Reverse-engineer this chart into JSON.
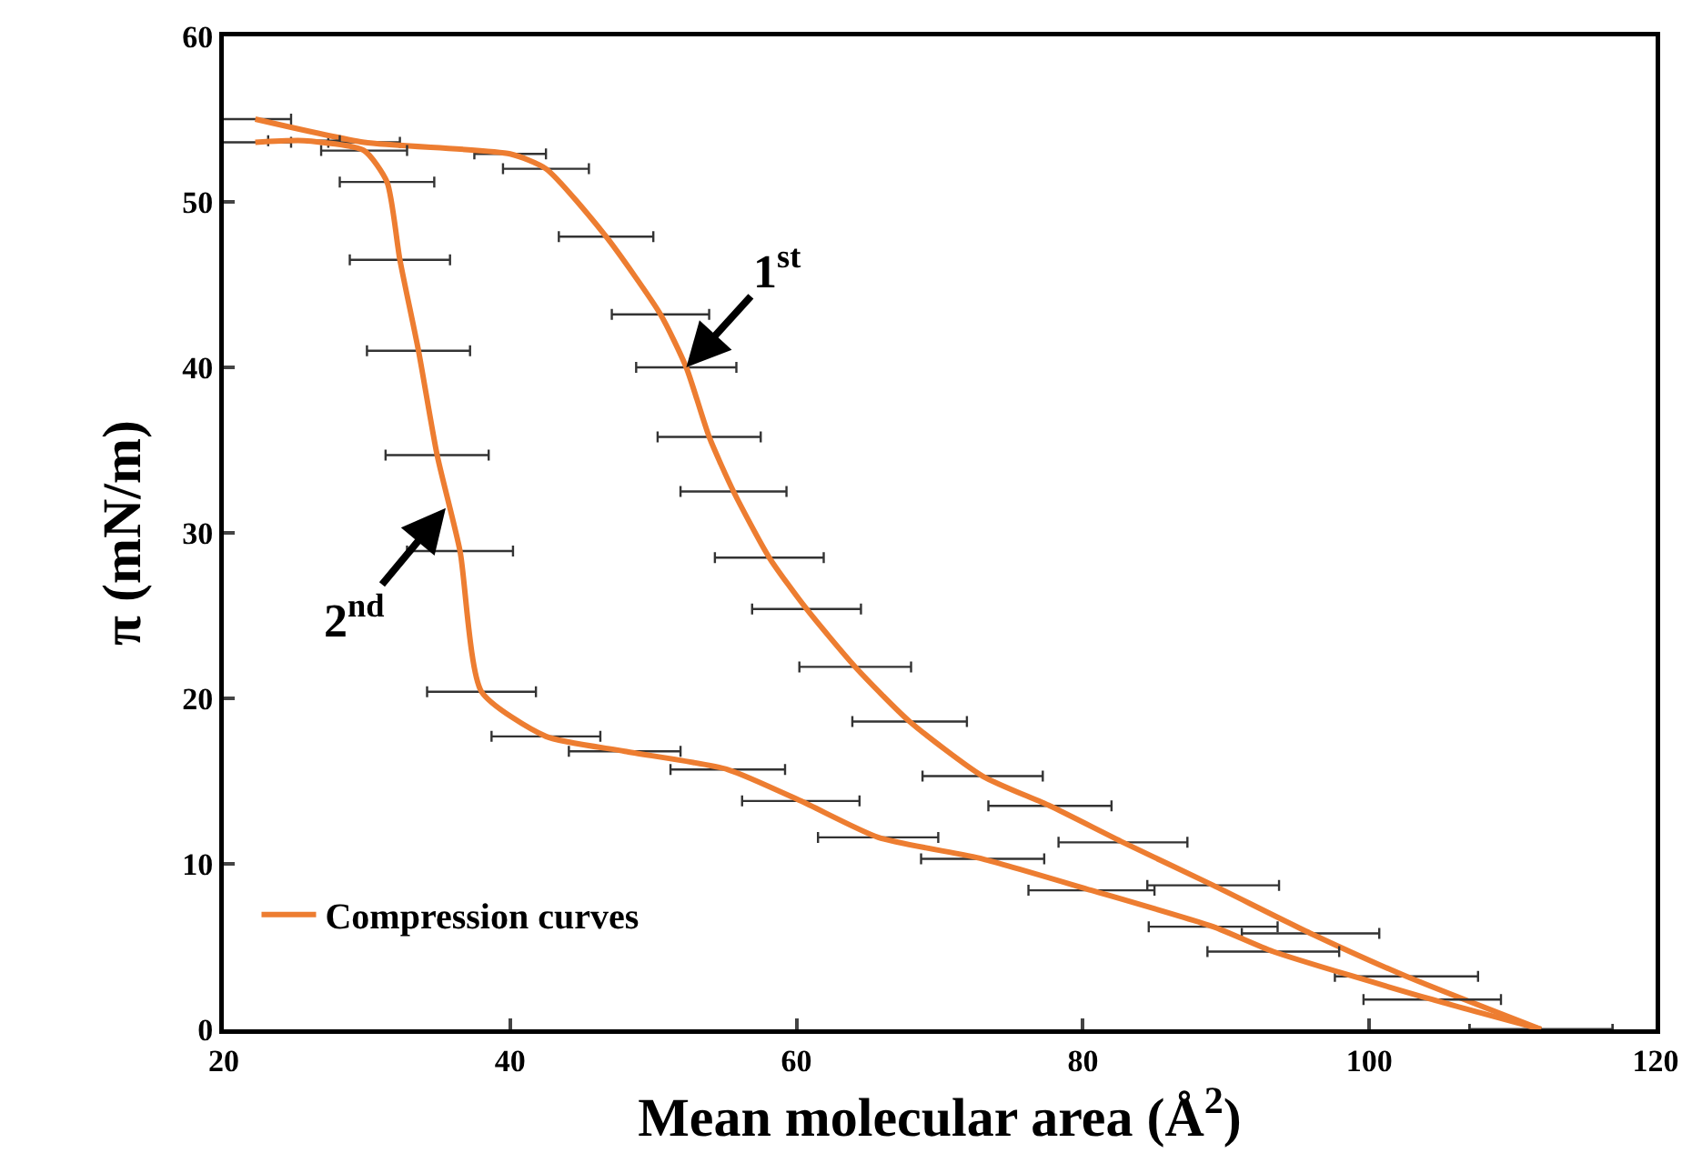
{
  "chart_data": {
    "type": "line",
    "xlabel": "Mean molecular area (Å$^{2}$)",
    "ylabel": "π (mN/m)",
    "xlim": [
      20,
      120
    ],
    "xticks": [
      20,
      40,
      60,
      80,
      100,
      120
    ],
    "ylim": [
      0,
      60
    ],
    "yticks": [
      0,
      10,
      20,
      30,
      40,
      50,
      60
    ],
    "grid": false,
    "legend": "bottom left",
    "marker": "none",
    "line_style": "solid",
    "series": [
      {
        "name": "Compression curves",
        "color": "#ed7d31",
        "x": [
          22.2,
          29.8,
          40,
          42.5,
          46.7,
          50.5,
          52.3,
          53.9,
          55.6,
          58.1,
          60.7,
          64.1,
          67.9,
          73,
          77.7,
          82.8,
          89.1,
          95.9,
          102.6,
          112
        ],
        "values": [
          55,
          53.6,
          52.9,
          52,
          47.9,
          43.2,
          40,
          35.8,
          32.5,
          28.5,
          25.4,
          21.9,
          18.6,
          15.3,
          13.5,
          11.3,
          8.7,
          5.8,
          3.2,
          0
        ],
        "xerrors": [
          2.5,
          2.5,
          2.5,
          3,
          3.3,
          3.4,
          3.5,
          3.6,
          3.7,
          3.8,
          3.8,
          3.9,
          4,
          4.2,
          4.3,
          4.5,
          4.6,
          4.8,
          5,
          5
        ]
      },
      {
        "color": "#ed7d31",
        "x": [
          22.2,
          25.6,
          29.8,
          31.4,
          32.3,
          33.6,
          34.9,
          36.5,
          38,
          42.5,
          48,
          55.2,
          60.3,
          65.7,
          73,
          80.6,
          89.1,
          93.3,
          104.4,
          112
        ],
        "values": [
          53.6,
          53.7,
          53.1,
          51.2,
          46.5,
          41,
          34.7,
          28.9,
          20.4,
          17.7,
          16.8,
          15.7,
          13.8,
          11.6,
          10.3,
          8.4,
          6.2,
          4.7,
          1.8,
          0
        ],
        "xerrors": [
          2.5,
          2.5,
          3,
          3.3,
          3.5,
          3.6,
          3.6,
          3.7,
          3.8,
          3.8,
          3.9,
          4,
          4.1,
          4.2,
          4.3,
          4.4,
          4.5,
          4.6,
          4.8,
          5
        ]
      }
    ],
    "annotations": [
      {
        "text": "1$^{st}$",
        "x": 52.3,
        "y": 40
      },
      {
        "text": "2$^{nd}$",
        "x": 35.5,
        "y": 31.5
      }
    ]
  }
}
